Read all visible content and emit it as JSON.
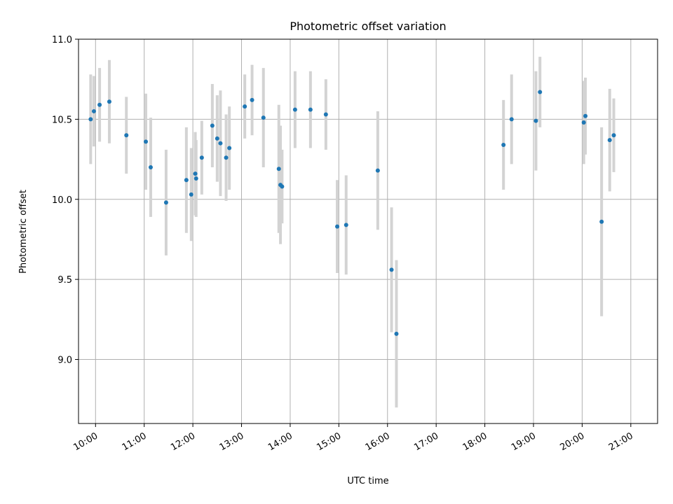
{
  "chart_data": {
    "type": "scatter",
    "title": "Photometric offset variation",
    "xlabel": "UTC time",
    "ylabel": "Photometric offset",
    "xlim": [
      "09:39",
      "21:33"
    ],
    "ylim": [
      8.6,
      11.0
    ],
    "grid": true,
    "x_ticks": [
      "10:00",
      "11:00",
      "12:00",
      "13:00",
      "14:00",
      "15:00",
      "16:00",
      "17:00",
      "18:00",
      "19:00",
      "20:00",
      "21:00"
    ],
    "y_ticks": [
      9.0,
      9.5,
      10.0,
      10.5,
      11.0
    ],
    "y_tick_labels": [
      "9.0",
      "9.5",
      "10.0",
      "10.5",
      "11.0"
    ],
    "colors": {
      "point": "#1f77b4",
      "errorbar": "#d3d3d3",
      "grid": "#b0b0b0"
    },
    "series": [
      {
        "x": [
          "09:54",
          "09:58",
          "10:05",
          "10:17",
          "10:38",
          "11:02",
          "11:08",
          "11:27",
          "11:52",
          "11:58",
          "12:03",
          "12:04",
          "12:11",
          "12:24",
          "12:30",
          "12:34",
          "12:41",
          "12:45",
          "13:04",
          "13:13",
          "13:27",
          "13:46",
          "13:48",
          "13:50",
          "14:06",
          "14:25",
          "14:44",
          "14:58",
          "15:09",
          "15:48",
          "16:05",
          "16:11",
          "18:23",
          "18:33",
          "19:03",
          "19:08",
          "20:02",
          "20:04",
          "20:24",
          "20:34",
          "20:39"
        ],
        "y": [
          10.5,
          10.55,
          10.59,
          10.61,
          10.4,
          10.36,
          10.2,
          9.98,
          10.12,
          10.03,
          10.16,
          10.13,
          10.26,
          10.46,
          10.38,
          10.35,
          10.26,
          10.32,
          10.58,
          10.62,
          10.51,
          10.19,
          10.09,
          10.08,
          10.56,
          10.56,
          10.53,
          9.83,
          9.84,
          10.18,
          9.56,
          9.16,
          10.34,
          10.5,
          10.49,
          10.67,
          10.48,
          10.52,
          9.86,
          10.37,
          10.4
        ],
        "err": [
          0.28,
          0.22,
          0.23,
          0.26,
          0.24,
          0.3,
          0.31,
          0.33,
          0.33,
          0.29,
          0.26,
          0.24,
          0.23,
          0.26,
          0.27,
          0.33,
          0.27,
          0.26,
          0.2,
          0.22,
          0.31,
          0.4,
          0.37,
          0.23,
          0.24,
          0.24,
          0.22,
          0.29,
          0.31,
          0.37,
          0.39,
          0.46,
          0.28,
          0.28,
          0.31,
          0.22,
          0.26,
          0.24,
          0.59,
          0.32,
          0.23
        ]
      }
    ]
  }
}
